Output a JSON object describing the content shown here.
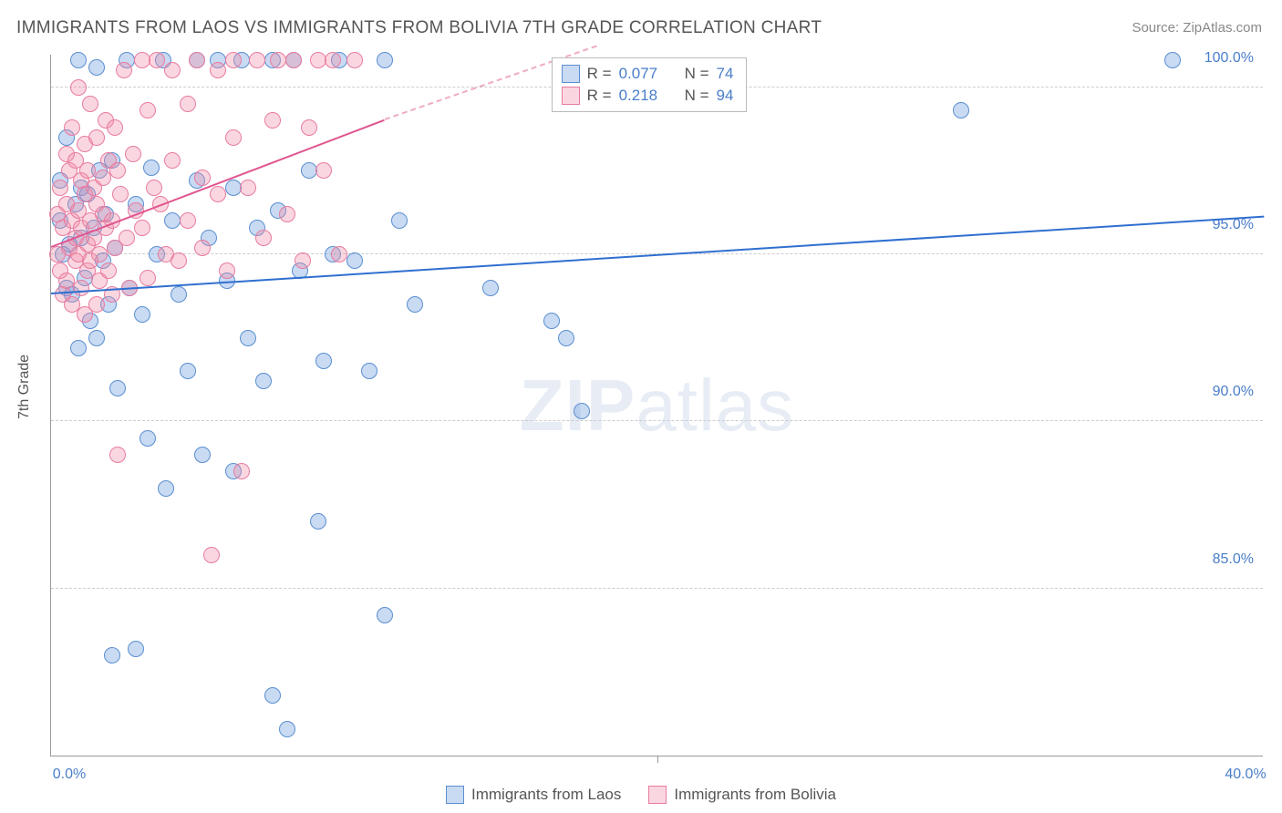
{
  "title": "IMMIGRANTS FROM LAOS VS IMMIGRANTS FROM BOLIVIA 7TH GRADE CORRELATION CHART",
  "source": "Source: ZipAtlas.com",
  "yaxis_label": "7th Grade",
  "watermark_bold": "ZIP",
  "watermark_rest": "atlas",
  "chart": {
    "type": "scatter",
    "xlim": [
      0,
      40
    ],
    "ylim": [
      80,
      101
    ],
    "y_gridlines": [
      85,
      90,
      95,
      100
    ],
    "y_tick_labels": [
      "85.0%",
      "90.0%",
      "95.0%",
      "100.0%"
    ],
    "x_ticks": [
      0,
      20,
      40
    ],
    "x_tick_labels": [
      "0.0%",
      "",
      "40.0%"
    ],
    "background_color": "#ffffff",
    "grid_color": "#cccccc",
    "axis_color": "#999999",
    "tick_label_color": "#4a7ec9",
    "marker_radius": 9,
    "series": [
      {
        "name": "Immigrants from Laos",
        "fill": "rgba(100,150,220,0.35)",
        "stroke": "#5a8fd0",
        "trend_color": "#2f6fd0",
        "trend_dash_color": "rgba(47,111,208,0.5)",
        "r_value": "0.077",
        "n_value": "74",
        "trend": {
          "y_at_x0": 93.8,
          "y_at_x40": 96.1
        },
        "points": [
          [
            0.3,
            96.0
          ],
          [
            0.3,
            97.2
          ],
          [
            0.4,
            95.0
          ],
          [
            0.5,
            94.0
          ],
          [
            0.5,
            98.5
          ],
          [
            0.6,
            95.3
          ],
          [
            0.7,
            93.8
          ],
          [
            0.8,
            96.5
          ],
          [
            0.9,
            100.8
          ],
          [
            0.9,
            92.2
          ],
          [
            1.0,
            97.0
          ],
          [
            1.0,
            95.5
          ],
          [
            1.1,
            94.3
          ],
          [
            1.2,
            96.8
          ],
          [
            1.3,
            93.0
          ],
          [
            1.4,
            95.8
          ],
          [
            1.5,
            100.6
          ],
          [
            1.5,
            92.5
          ],
          [
            1.6,
            97.5
          ],
          [
            1.7,
            94.8
          ],
          [
            1.8,
            96.2
          ],
          [
            1.9,
            93.5
          ],
          [
            2.0,
            83.0
          ],
          [
            2.0,
            97.8
          ],
          [
            2.1,
            95.2
          ],
          [
            2.2,
            91.0
          ],
          [
            2.5,
            100.8
          ],
          [
            2.6,
            94.0
          ],
          [
            2.8,
            83.2
          ],
          [
            2.8,
            96.5
          ],
          [
            3.0,
            93.2
          ],
          [
            3.2,
            89.5
          ],
          [
            3.3,
            97.6
          ],
          [
            3.5,
            95.0
          ],
          [
            3.7,
            100.8
          ],
          [
            3.8,
            88.0
          ],
          [
            4.0,
            96.0
          ],
          [
            4.2,
            93.8
          ],
          [
            4.5,
            91.5
          ],
          [
            4.8,
            100.8
          ],
          [
            4.8,
            97.2
          ],
          [
            5.0,
            89.0
          ],
          [
            5.2,
            95.5
          ],
          [
            5.5,
            100.8
          ],
          [
            5.8,
            94.2
          ],
          [
            6.0,
            88.5
          ],
          [
            6.0,
            97.0
          ],
          [
            6.3,
            100.8
          ],
          [
            6.5,
            92.5
          ],
          [
            6.8,
            95.8
          ],
          [
            7.0,
            91.2
          ],
          [
            7.3,
            100.8
          ],
          [
            7.3,
            81.8
          ],
          [
            7.5,
            96.3
          ],
          [
            7.8,
            80.8
          ],
          [
            8.0,
            100.8
          ],
          [
            8.2,
            94.5
          ],
          [
            8.5,
            97.5
          ],
          [
            8.8,
            87.0
          ],
          [
            9.0,
            91.8
          ],
          [
            9.3,
            95.0
          ],
          [
            9.5,
            100.8
          ],
          [
            10.0,
            94.8
          ],
          [
            10.5,
            91.5
          ],
          [
            11.0,
            84.2
          ],
          [
            11.0,
            100.8
          ],
          [
            11.5,
            96.0
          ],
          [
            12.0,
            93.5
          ],
          [
            14.5,
            94.0
          ],
          [
            16.5,
            93.0
          ],
          [
            17.0,
            92.5
          ],
          [
            17.5,
            90.3
          ],
          [
            30.0,
            99.3
          ],
          [
            37.0,
            100.8
          ]
        ]
      },
      {
        "name": "Immigrants from Bolivia",
        "fill": "rgba(240,140,165,0.35)",
        "stroke": "#e87ba0",
        "trend_color": "#e05590",
        "trend_dash_color": "rgba(224,85,144,0.5)",
        "r_value": "0.218",
        "n_value": "94",
        "trend": {
          "y_at_x0": 95.2,
          "y_at_x11": 99.0,
          "y_at_x18": 101.2
        },
        "points": [
          [
            0.2,
            95.0
          ],
          [
            0.2,
            96.2
          ],
          [
            0.3,
            94.5
          ],
          [
            0.3,
            97.0
          ],
          [
            0.4,
            95.8
          ],
          [
            0.4,
            93.8
          ],
          [
            0.5,
            96.5
          ],
          [
            0.5,
            98.0
          ],
          [
            0.5,
            94.2
          ],
          [
            0.6,
            95.2
          ],
          [
            0.6,
            97.5
          ],
          [
            0.7,
            96.0
          ],
          [
            0.7,
            93.5
          ],
          [
            0.7,
            98.8
          ],
          [
            0.8,
            95.5
          ],
          [
            0.8,
            94.8
          ],
          [
            0.8,
            97.8
          ],
          [
            0.9,
            96.3
          ],
          [
            0.9,
            95.0
          ],
          [
            0.9,
            100.0
          ],
          [
            1.0,
            94.0
          ],
          [
            1.0,
            97.2
          ],
          [
            1.0,
            95.8
          ],
          [
            1.1,
            96.8
          ],
          [
            1.1,
            93.2
          ],
          [
            1.1,
            98.3
          ],
          [
            1.2,
            95.3
          ],
          [
            1.2,
            94.5
          ],
          [
            1.2,
            97.5
          ],
          [
            1.3,
            96.0
          ],
          [
            1.3,
            99.5
          ],
          [
            1.3,
            94.8
          ],
          [
            1.4,
            95.5
          ],
          [
            1.4,
            97.0
          ],
          [
            1.5,
            96.5
          ],
          [
            1.5,
            93.5
          ],
          [
            1.5,
            98.5
          ],
          [
            1.6,
            95.0
          ],
          [
            1.6,
            94.2
          ],
          [
            1.7,
            97.3
          ],
          [
            1.7,
            96.2
          ],
          [
            1.8,
            99.0
          ],
          [
            1.8,
            95.8
          ],
          [
            1.9,
            94.5
          ],
          [
            1.9,
            97.8
          ],
          [
            2.0,
            96.0
          ],
          [
            2.0,
            93.8
          ],
          [
            2.1,
            98.8
          ],
          [
            2.1,
            95.2
          ],
          [
            2.2,
            89.0
          ],
          [
            2.2,
            97.5
          ],
          [
            2.3,
            96.8
          ],
          [
            2.4,
            100.5
          ],
          [
            2.5,
            95.5
          ],
          [
            2.6,
            94.0
          ],
          [
            2.7,
            98.0
          ],
          [
            2.8,
            96.3
          ],
          [
            3.0,
            100.8
          ],
          [
            3.0,
            95.8
          ],
          [
            3.2,
            99.3
          ],
          [
            3.2,
            94.3
          ],
          [
            3.4,
            97.0
          ],
          [
            3.5,
            100.8
          ],
          [
            3.6,
            96.5
          ],
          [
            3.8,
            95.0
          ],
          [
            4.0,
            100.5
          ],
          [
            4.0,
            97.8
          ],
          [
            4.2,
            94.8
          ],
          [
            4.5,
            99.5
          ],
          [
            4.5,
            96.0
          ],
          [
            4.8,
            100.8
          ],
          [
            5.0,
            97.3
          ],
          [
            5.0,
            95.2
          ],
          [
            5.3,
            86.0
          ],
          [
            5.5,
            100.5
          ],
          [
            5.5,
            96.8
          ],
          [
            5.8,
            94.5
          ],
          [
            6.0,
            98.5
          ],
          [
            6.0,
            100.8
          ],
          [
            6.3,
            88.5
          ],
          [
            6.5,
            97.0
          ],
          [
            6.8,
            100.8
          ],
          [
            7.0,
            95.5
          ],
          [
            7.3,
            99.0
          ],
          [
            7.5,
            100.8
          ],
          [
            7.8,
            96.2
          ],
          [
            8.0,
            100.8
          ],
          [
            8.3,
            94.8
          ],
          [
            8.5,
            98.8
          ],
          [
            8.8,
            100.8
          ],
          [
            9.0,
            97.5
          ],
          [
            9.3,
            100.8
          ],
          [
            9.5,
            95.0
          ],
          [
            10.0,
            100.8
          ]
        ]
      }
    ]
  },
  "stats_legend": {
    "r_label": "R =",
    "n_label": "N ="
  },
  "bottom_legend": {
    "laos": "Immigrants from Laos",
    "bolivia": "Immigrants from Bolivia"
  }
}
